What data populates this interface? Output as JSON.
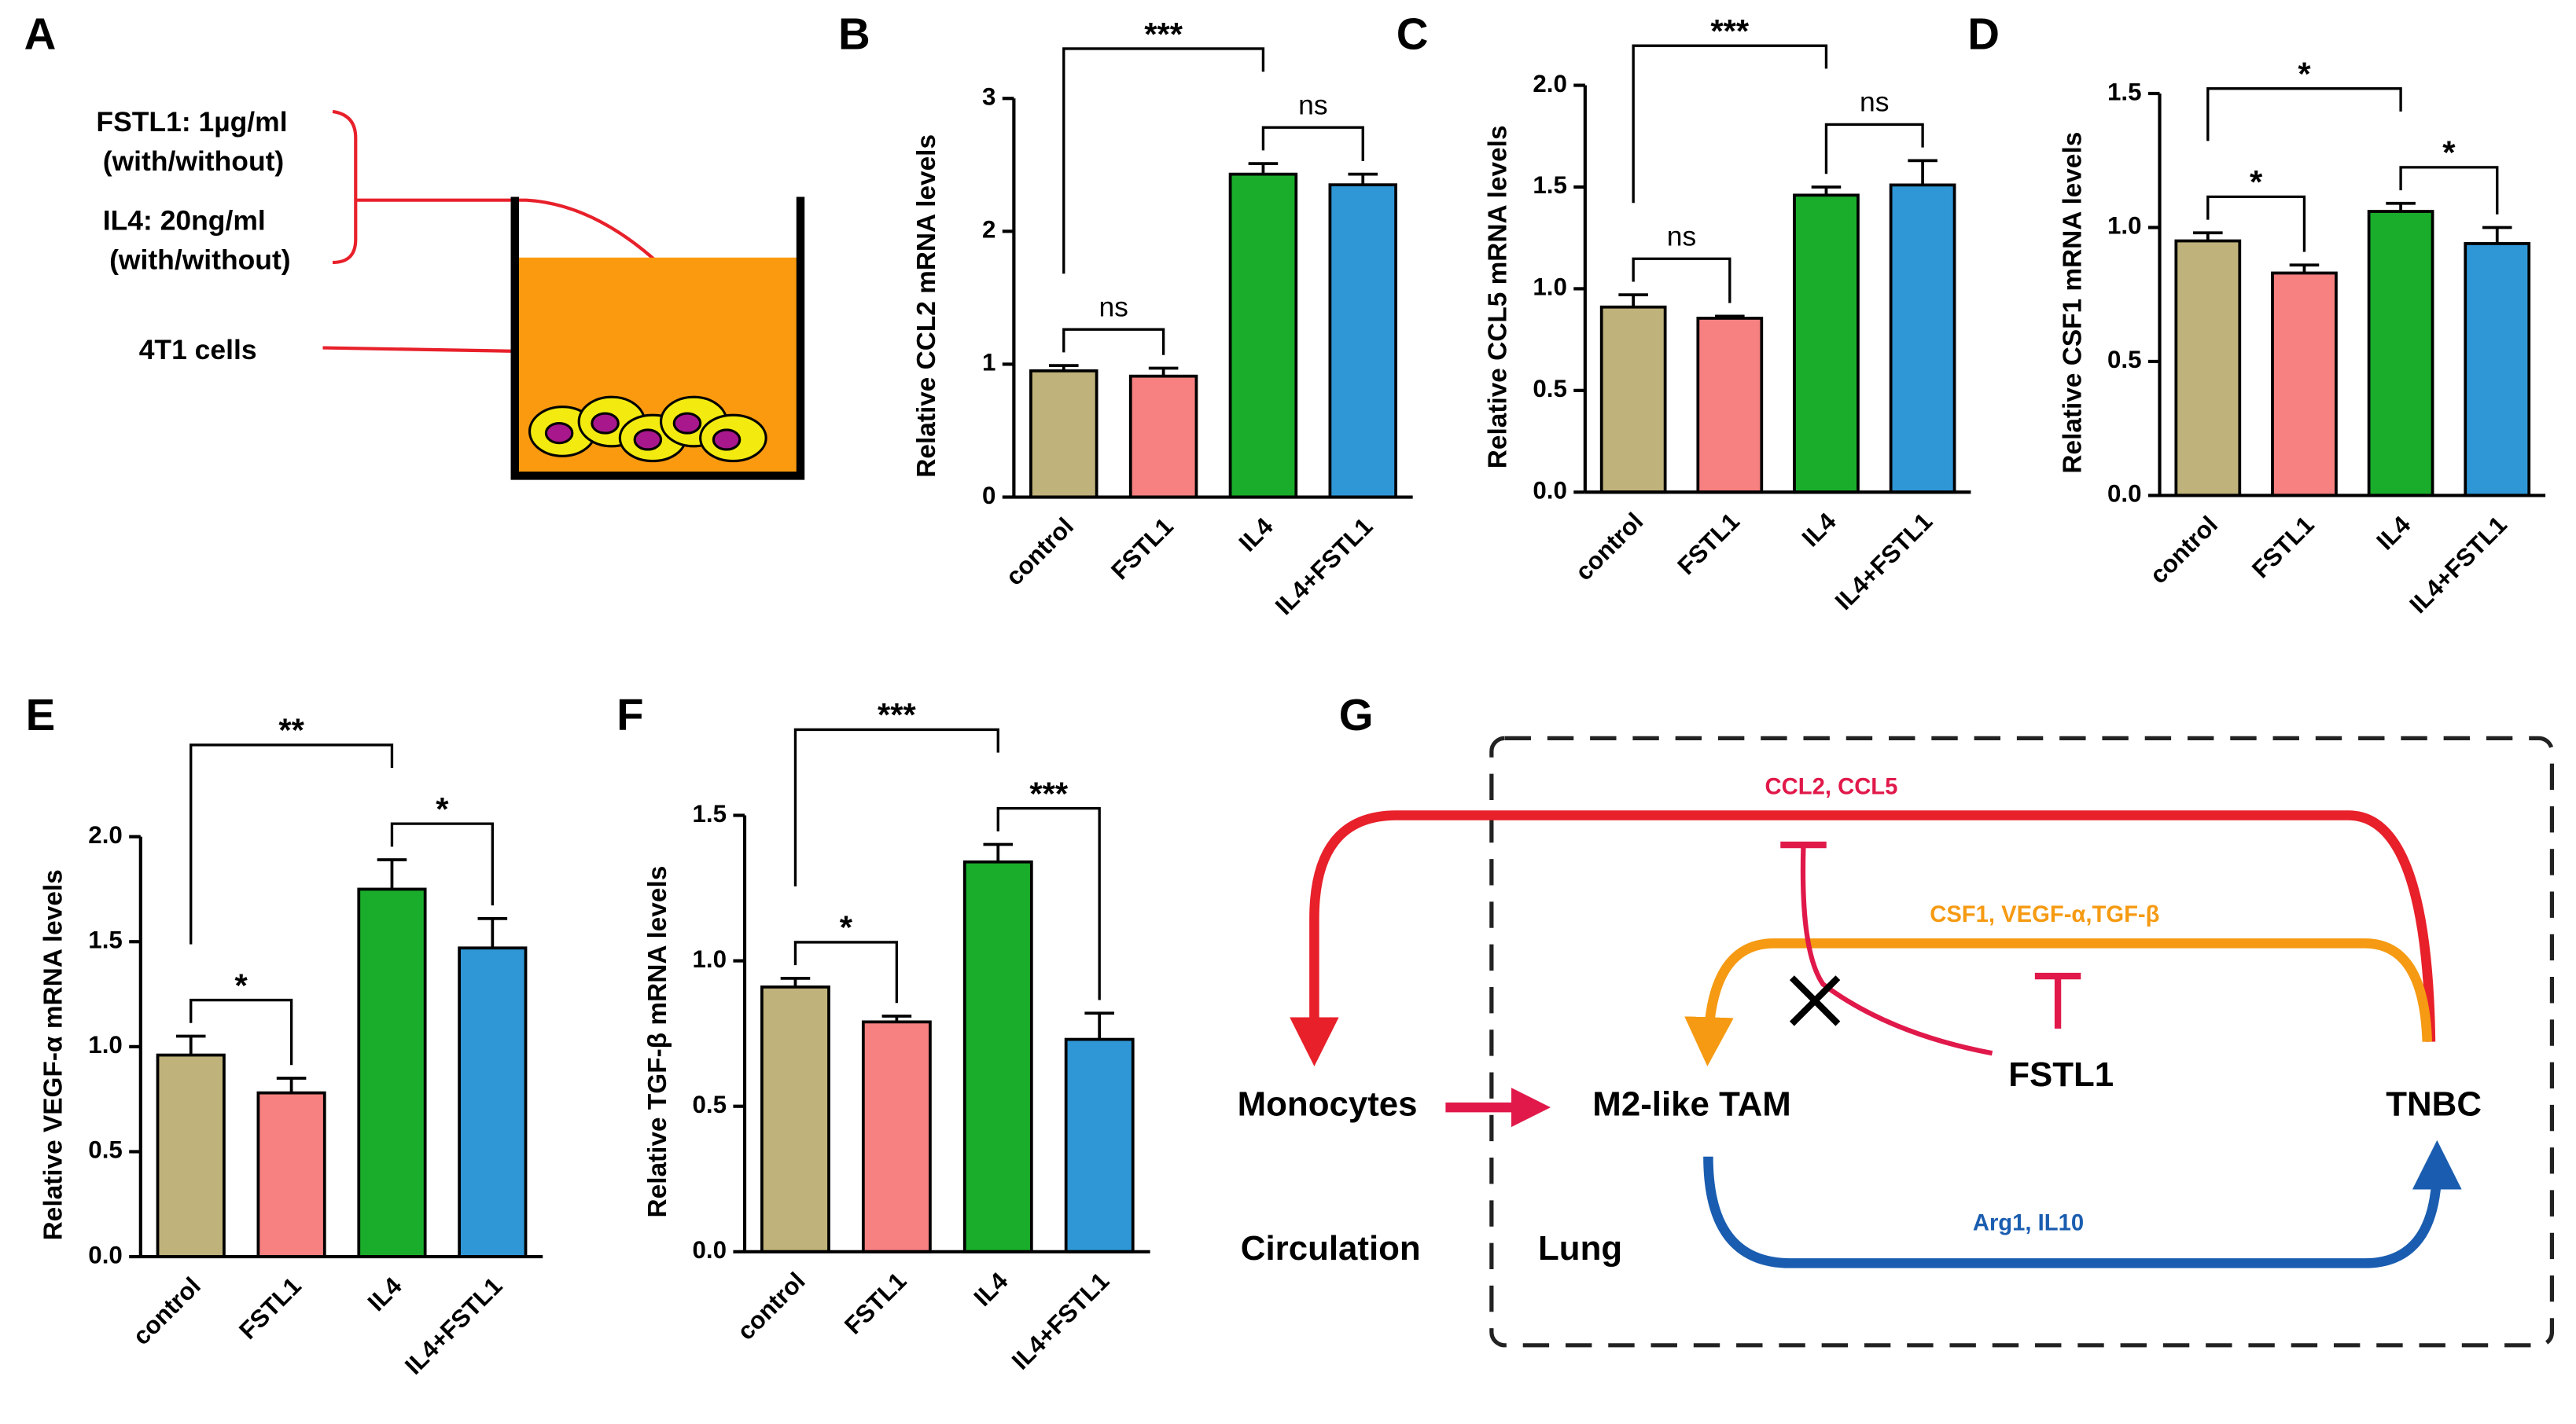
{
  "panel_a": {
    "label": "A",
    "treatment_1": "FSTL1: 1µg/ml",
    "treatment_1_note": "(with/without)",
    "treatment_2": "IL4: 20ng/ml",
    "treatment_2_note": "(with/without)",
    "cells": "4T1 cells"
  },
  "chart_data": [
    {
      "type": "bar",
      "label": "B",
      "ylabel": "Relative CCL2 mRNA levels",
      "categories": [
        "control",
        "FSTL1",
        "IL4",
        "IL4+FSTL1"
      ],
      "values": [
        0.95,
        0.91,
        2.43,
        2.35
      ],
      "errors": [
        0.04,
        0.06,
        0.08,
        0.08
      ],
      "colors": [
        "#bfb27a",
        "#f78080",
        "#1aad2b",
        "#2f97d6"
      ],
      "ylim": [
        0,
        3
      ],
      "yticks": [
        0,
        1,
        2,
        3
      ],
      "significance": [
        {
          "groups": [
            0,
            1
          ],
          "label": "ns"
        },
        {
          "groups": [
            2,
            3
          ],
          "label": "ns"
        },
        {
          "groups": [
            0,
            2
          ],
          "label": "***"
        }
      ]
    },
    {
      "type": "bar",
      "label": "C",
      "ylabel": "Relative CCL5 mRNA levels",
      "categories": [
        "control",
        "FSTL1",
        "IL4",
        "IL4+FSTL1"
      ],
      "values": [
        0.91,
        0.855,
        1.46,
        1.51
      ],
      "errors": [
        0.06,
        0.01,
        0.04,
        0.12
      ],
      "colors": [
        "#bfb27a",
        "#f78080",
        "#1aad2b",
        "#2f97d6"
      ],
      "ylim": [
        0,
        2
      ],
      "yticks": [
        {
          "value": 0,
          "label": "0.0"
        },
        0.5,
        {
          "value": 1,
          "label": "1.0"
        },
        1.5,
        {
          "value": 2,
          "label": "2.0"
        }
      ],
      "significance": [
        {
          "groups": [
            0,
            1
          ],
          "label": "ns"
        },
        {
          "groups": [
            2,
            3
          ],
          "label": "ns"
        },
        {
          "groups": [
            0,
            2
          ],
          "label": "***"
        }
      ]
    },
    {
      "type": "bar",
      "label": "D",
      "ylabel": "Relative CSF1 mRNA levels",
      "categories": [
        "control",
        "FSTL1",
        "IL4",
        "IL4+FSTL1"
      ],
      "values": [
        0.95,
        0.83,
        1.06,
        0.94
      ],
      "errors": [
        0.03,
        0.03,
        0.03,
        0.06
      ],
      "colors": [
        "#bfb27a",
        "#f78080",
        "#1aad2b",
        "#2f97d6"
      ],
      "ylim": [
        0,
        1.5
      ],
      "yticks": [
        {
          "value": 0,
          "label": "0.0"
        },
        0.5,
        {
          "value": 1,
          "label": "1.0"
        },
        1.5
      ],
      "significance": [
        {
          "groups": [
            0,
            1
          ],
          "label": "*"
        },
        {
          "groups": [
            2,
            3
          ],
          "label": "*"
        },
        {
          "groups": [
            0,
            2
          ],
          "label": "*"
        }
      ]
    },
    {
      "type": "bar",
      "label": "E",
      "ylabel": "Relative VEGF-α mRNA levels",
      "categories": [
        "control",
        "FSTL1",
        "IL4",
        "IL4+FSTL1"
      ],
      "values": [
        0.96,
        0.78,
        1.75,
        1.47
      ],
      "errors": [
        0.09,
        0.07,
        0.14,
        0.14
      ],
      "colors": [
        "#bfb27a",
        "#f78080",
        "#1aad2b",
        "#2f97d6"
      ],
      "ylim": [
        0,
        2
      ],
      "yticks": [
        {
          "value": 0,
          "label": "0.0"
        },
        0.5,
        {
          "value": 1,
          "label": "1.0"
        },
        1.5,
        {
          "value": 2,
          "label": "2.0"
        }
      ],
      "significance": [
        {
          "groups": [
            0,
            1
          ],
          "label": "*"
        },
        {
          "groups": [
            2,
            3
          ],
          "label": "*"
        },
        {
          "groups": [
            0,
            2
          ],
          "label": "**"
        }
      ]
    },
    {
      "type": "bar",
      "label": "F",
      "ylabel": "Relative TGF-β mRNA levels",
      "categories": [
        "control",
        "FSTL1",
        "IL4",
        "IL4+FSTL1"
      ],
      "values": [
        0.91,
        0.79,
        1.34,
        0.73
      ],
      "errors": [
        0.03,
        0.02,
        0.06,
        0.09
      ],
      "colors": [
        "#bfb27a",
        "#f78080",
        "#1aad2b",
        "#2f97d6"
      ],
      "ylim": [
        0,
        1.5
      ],
      "yticks": [
        {
          "value": 0,
          "label": "0.0"
        },
        0.5,
        {
          "value": 1,
          "label": "1.0"
        },
        1.5
      ],
      "significance": [
        {
          "groups": [
            0,
            1
          ],
          "label": "*"
        },
        {
          "groups": [
            2,
            3
          ],
          "label": "***"
        },
        {
          "groups": [
            0,
            2
          ],
          "label": "***"
        }
      ]
    }
  ],
  "panel_g": {
    "label": "G",
    "ccl": "CCL2, CCL5",
    "csf": "CSF1, VEGF-α,TGF-β",
    "monocytes": "Monocytes",
    "tam": "M2-like TAM",
    "fstl1": "FSTL1",
    "tnbc": "TNBC",
    "arg": "Arg1, IL10",
    "circulation": "Circulation",
    "lung": "Lung"
  }
}
